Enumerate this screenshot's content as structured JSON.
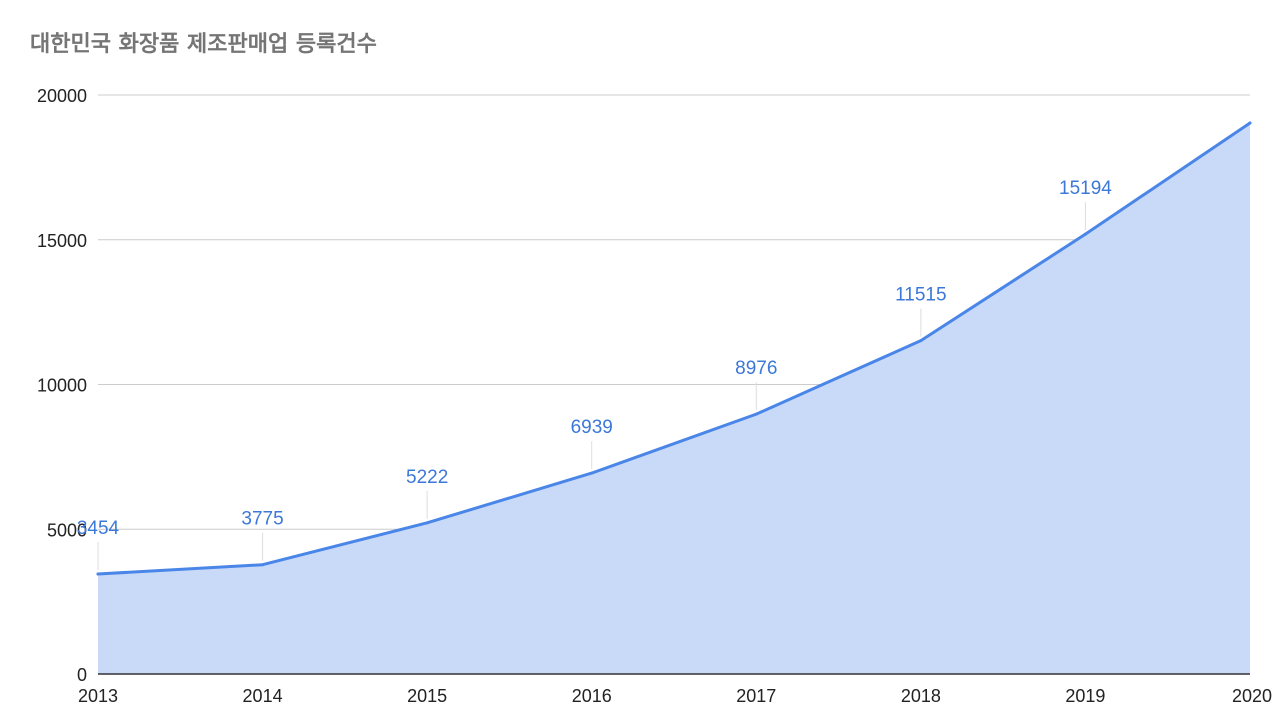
{
  "chart_data": {
    "type": "area",
    "title": "대한민국 화장품 제조판매업 등록건수",
    "xlabel": "",
    "ylabel": "",
    "categories": [
      "2013",
      "2014",
      "2015",
      "2016",
      "2017",
      "2018",
      "2019",
      "2020"
    ],
    "series": [
      {
        "values": [
          3454,
          3775,
          5222,
          6939,
          8976,
          11515,
          15194,
          19032
        ],
        "data_labels": [
          "3454",
          "3775",
          "5222",
          "6939",
          "8976",
          "11515",
          "15194",
          null
        ]
      }
    ],
    "ylim": [
      0,
      20000
    ],
    "yticks": [
      0,
      5000,
      10000,
      15000,
      20000
    ],
    "grid": true,
    "legend": "none",
    "colors": {
      "line": "#4a86e8",
      "fill": "#c9daf8",
      "label": "#3c78d8",
      "grid": "#cccccc",
      "axis": "#333333"
    }
  }
}
